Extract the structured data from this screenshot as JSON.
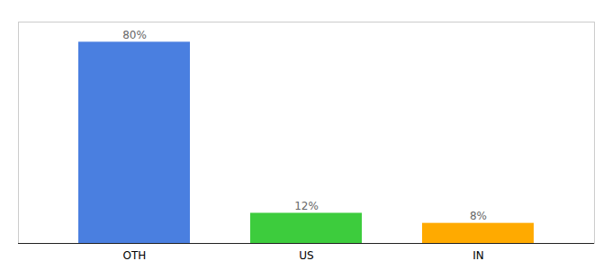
{
  "chart_data": {
    "type": "bar",
    "categories": [
      "OTH",
      "US",
      "IN"
    ],
    "values": [
      80,
      12,
      8
    ],
    "value_labels": [
      "80%",
      "12%",
      "8%"
    ],
    "colors": [
      "#4a7fe0",
      "#3dcc3d",
      "#ffaa00"
    ],
    "ylim": [
      0,
      88
    ],
    "data_labels": true,
    "tick_labels": "x"
  }
}
